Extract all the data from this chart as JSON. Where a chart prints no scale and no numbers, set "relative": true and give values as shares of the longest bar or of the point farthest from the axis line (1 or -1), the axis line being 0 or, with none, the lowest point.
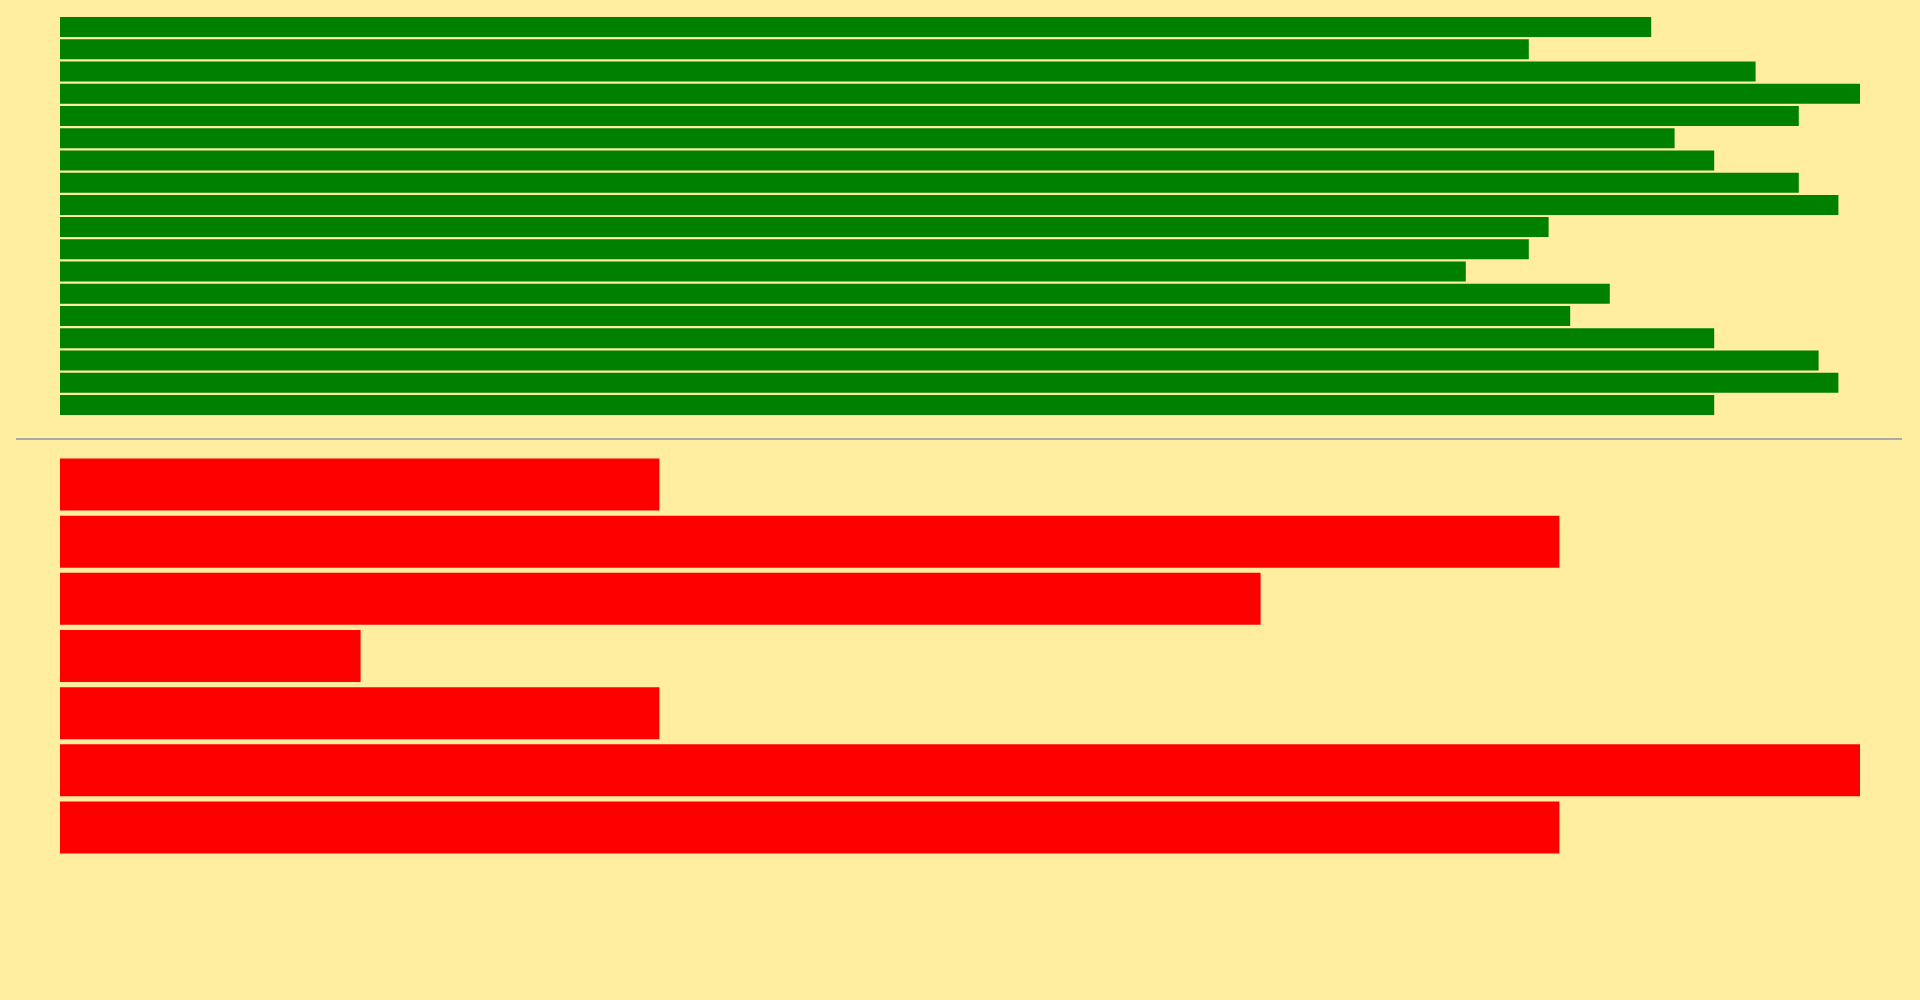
{
  "chart_data": [
    {
      "type": "bar",
      "orientation": "horizontal",
      "relative": true,
      "legend": false,
      "categories": [
        null,
        null,
        null,
        null,
        null,
        null,
        null,
        null,
        null,
        null,
        null,
        null,
        null,
        null,
        null,
        null,
        null,
        null
      ],
      "series": [
        {
          "color": "#008000",
          "values": [
            0.884,
            0.816,
            0.942,
            1,
            0.966,
            0.897,
            0.919,
            0.966,
            0.988,
            0.827,
            0.816,
            0.781,
            0.861,
            0.839,
            0.919,
            0.977,
            0.988,
            0.919
          ]
        }
      ]
    },
    {
      "type": "bar",
      "orientation": "horizontal",
      "relative": true,
      "legend": false,
      "categories": [
        null,
        null,
        null,
        null,
        null,
        null,
        null
      ],
      "series": [
        {
          "color": "#ff0000",
          "values": [
            0.333,
            0.833,
            0.667,
            0.167,
            0.333,
            1,
            0.833
          ]
        }
      ]
    }
  ]
}
